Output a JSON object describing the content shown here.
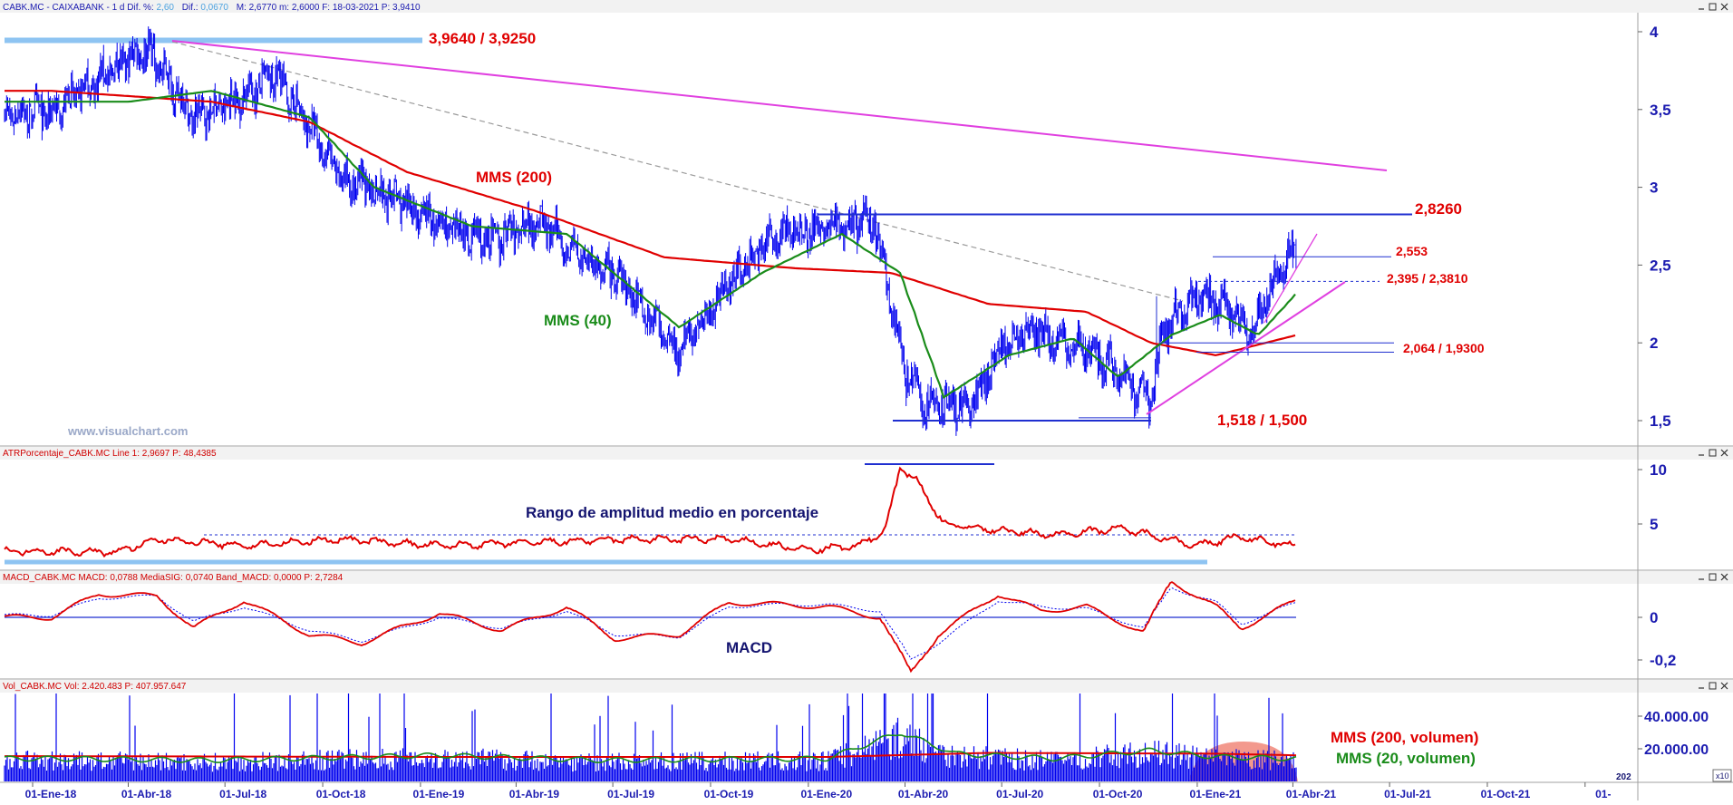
{
  "panels": {
    "price": {
      "header": "CABK.MC - CAIXABANK -  1 d  Dif. %:",
      "header_v1": "2,60",
      "header_l2": "Dif.:",
      "header_v2": "0,0670",
      "header_rest": "M: 2,6770  m: 2,6000  F: 18-03-2021  P: 3,9410",
      "watermark": "www.visualchart.com",
      "label_mms200": "MMS (200)",
      "label_mms40": "MMS (40)",
      "level_top": "3,9640 / 3,9250",
      "level_2826": "2,8260",
      "level_2553": "2,553",
      "level_2395": "2,395 / 2,3810",
      "level_2064": "2,064 / 1,9300",
      "level_1518": "1,518 / 1,500"
    },
    "atr": {
      "header": "ATRPorcentaje_CABK.MC  Line 1: 2,9697  P: 48,4385",
      "title": "Rango de amplitud medio en porcentaje"
    },
    "macd": {
      "header": "MACD_CABK.MC  MACD: 0,0788  MediaSIG: 0,0740  Band_MACD: 0,0000  P: 2,7284",
      "title": "MACD"
    },
    "volume": {
      "header": "Vol_CABK.MC  Vol: 2.420.483  P: 407.957.647",
      "label_mms200": "MMS (200, volumen)",
      "label_mms20": "MMS (20, volumen)",
      "corner_label": "202",
      "corner_box": "x10"
    }
  },
  "colors": {
    "candles": "#0000ee",
    "mms200": "#e00000",
    "mms40": "#1a8c1a",
    "trendline": "#e040e0",
    "level": "#1f2fd0",
    "level_text": "#e00000",
    "axis_text": "#1b1bb0",
    "light_band": "#8ec4f2"
  },
  "chart_data": [
    {
      "type": "line",
      "name": "CABK.MC price (1 d)",
      "x": [
        "2018-01-01",
        "2018-02-15",
        "2018-04-01",
        "2018-05-15",
        "2018-06-20",
        "2018-08-01",
        "2018-10-01",
        "2018-11-15",
        "2019-01-01",
        "2019-02-20",
        "2019-04-01",
        "2019-05-15",
        "2019-06-20",
        "2019-08-15",
        "2019-10-01",
        "2019-11-15",
        "2020-01-01",
        "2020-02-15",
        "2020-03-15",
        "2020-04-01",
        "2020-05-15",
        "2020-06-15",
        "2020-07-15",
        "2020-08-15",
        "2020-09-25",
        "2020-10-30",
        "2020-11-15",
        "2020-12-15",
        "2021-01-10",
        "2021-02-01",
        "2021-02-25",
        "2021-03-18"
      ],
      "y": [
        3.48,
        3.7,
        3.9,
        3.45,
        3.55,
        3.72,
        3.05,
        2.95,
        2.75,
        2.65,
        2.8,
        2.55,
        2.4,
        1.95,
        2.4,
        2.7,
        2.75,
        2.78,
        1.8,
        1.6,
        1.6,
        2.0,
        2.05,
        2.0,
        1.85,
        1.62,
        2.1,
        2.3,
        2.25,
        2.05,
        2.4,
        2.62
      ],
      "xlim": [
        "2017-12-15",
        "2022-01-01"
      ],
      "ylim": [
        1.35,
        4.1
      ],
      "y_ticks": [
        "4",
        "3,5",
        "3",
        "2,5",
        "2",
        "1,5"
      ],
      "x_ticks": [
        "01-Ene-18",
        "01-Abr-18",
        "01-Jul-18",
        "01-Oct-18",
        "01-Ene-19",
        "01-Abr-19",
        "01-Jul-19",
        "01-Oct-19",
        "01-Ene-20",
        "01-Abr-20",
        "01-Jul-20",
        "01-Oct-20",
        "01-Ene-21",
        "01-Abr-21",
        "01-Jul-21",
        "01-Oct-21",
        "01-"
      ],
      "series": [
        {
          "name": "MMS (200)",
          "x": [
            "2018-01-01",
            "2018-06-01",
            "2018-09-01",
            "2018-12-01",
            "2019-04-01",
            "2019-08-01",
            "2019-12-01",
            "2020-03-01",
            "2020-06-01",
            "2020-09-01",
            "2020-11-01",
            "2021-01-01",
            "2021-03-18"
          ],
          "values": [
            3.62,
            3.55,
            3.42,
            3.1,
            2.85,
            2.55,
            2.48,
            2.45,
            2.25,
            2.2,
            2.0,
            1.92,
            2.05
          ]
        },
        {
          "name": "MMS (40)",
          "x": [
            "2018-01-01",
            "2018-03-15",
            "2018-06-01",
            "2018-09-01",
            "2018-11-01",
            "2019-02-01",
            "2019-05-01",
            "2019-08-15",
            "2019-11-01",
            "2020-01-15",
            "2020-03-10",
            "2020-04-20",
            "2020-06-20",
            "2020-08-20",
            "2020-10-01",
            "2020-11-20",
            "2021-01-05",
            "2021-02-10",
            "2021-03-18"
          ],
          "values": [
            3.55,
            3.55,
            3.62,
            3.45,
            3.0,
            2.75,
            2.7,
            2.1,
            2.45,
            2.7,
            2.45,
            1.65,
            1.92,
            2.03,
            1.78,
            2.05,
            2.18,
            2.05,
            2.32
          ]
        }
      ],
      "horizontal_levels": [
        3.964,
        3.925,
        2.826,
        2.553,
        2.395,
        2.381,
        2.064,
        1.93,
        1.518,
        1.5
      ],
      "grid": false
    },
    {
      "type": "line",
      "name": "ATRPorcentaje",
      "x": [
        "2018-01-01",
        "2018-03-01",
        "2018-04-15",
        "2018-07-01",
        "2018-10-01",
        "2019-01-01",
        "2019-04-01",
        "2019-07-01",
        "2019-10-01",
        "2019-12-15",
        "2020-02-01",
        "2020-02-25",
        "2020-03-10",
        "2020-03-25",
        "2020-04-20",
        "2020-06-01",
        "2020-08-01",
        "2020-10-01",
        "2020-11-01",
        "2020-12-15",
        "2021-01-20",
        "2021-03-18"
      ],
      "y": [
        2.5,
        2.4,
        3.6,
        3.0,
        3.6,
        3.0,
        3.3,
        3.6,
        3.6,
        2.6,
        3.0,
        4.5,
        10.3,
        9.0,
        5.0,
        4.5,
        4.0,
        4.6,
        4.0,
        3.0,
        3.8,
        3.0
      ],
      "ylim": [
        0,
        11.5
      ],
      "y_ticks": [
        "10",
        "5"
      ],
      "reference_level": 4.0,
      "grid": false
    },
    {
      "type": "line",
      "name": "MACD",
      "x": [
        "2018-01-01",
        "2018-02-15",
        "2018-04-10",
        "2018-05-15",
        "2018-07-01",
        "2018-09-01",
        "2018-10-20",
        "2019-01-01",
        "2019-03-01",
        "2019-05-01",
        "2019-06-15",
        "2019-08-15",
        "2019-10-01",
        "2019-11-20",
        "2020-01-01",
        "2020-02-20",
        "2020-03-20",
        "2020-04-15",
        "2020-06-10",
        "2020-07-20",
        "2020-09-01",
        "2020-10-25",
        "2020-11-20",
        "2021-01-01",
        "2021-01-25",
        "2021-03-18"
      ],
      "y": [
        0.0,
        0.11,
        0.1,
        -0.05,
        0.08,
        -0.08,
        -0.12,
        0.02,
        -0.06,
        0.05,
        -0.1,
        -0.08,
        0.07,
        0.06,
        0.05,
        0.0,
        -0.26,
        -0.08,
        0.11,
        0.03,
        0.05,
        -0.07,
        0.17,
        0.05,
        -0.05,
        0.08
      ],
      "series": [
        {
          "name": "MACD",
          "values": [
            0.0,
            0.11,
            0.1,
            -0.05,
            0.08,
            -0.08,
            -0.12,
            0.02,
            -0.06,
            0.05,
            -0.1,
            -0.08,
            0.07,
            0.06,
            0.05,
            0.0,
            -0.26,
            -0.08,
            0.11,
            0.03,
            0.05,
            -0.07,
            0.17,
            0.05,
            -0.05,
            0.08
          ]
        },
        {
          "name": "MediaSIG",
          "values": [
            0.01,
            0.09,
            0.1,
            -0.02,
            0.05,
            -0.06,
            -0.11,
            0.0,
            -0.05,
            0.03,
            -0.08,
            -0.09,
            0.05,
            0.06,
            0.06,
            0.03,
            -0.2,
            -0.12,
            0.08,
            0.05,
            0.04,
            -0.05,
            0.14,
            0.07,
            -0.03,
            0.07
          ]
        }
      ],
      "ylim": [
        -0.28,
        0.26
      ],
      "y_ticks": [
        "0",
        "-0,2"
      ],
      "grid": false
    },
    {
      "type": "bar",
      "name": "Vol_CABK.MC",
      "ylim": [
        0,
        55000000
      ],
      "y_ticks": [
        "40.000.00",
        "20.000.00"
      ],
      "series": [
        {
          "name": "MMS (200, volumen)",
          "x": [
            "2018-01-01",
            "2019-01-01",
            "2020-01-01",
            "2020-06-01",
            "2021-01-01",
            "2021-03-18"
          ],
          "values": [
            15500000,
            15000000,
            15000000,
            17500000,
            17000000,
            16000000
          ]
        },
        {
          "name": "MMS (20, volumen)",
          "x": [
            "2018-01-01",
            "2018-06-01",
            "2019-01-01",
            "2019-06-01",
            "2020-01-01",
            "2020-03-10",
            "2020-05-01",
            "2020-08-01",
            "2020-11-01",
            "2021-01-01",
            "2021-03-18"
          ],
          "values": [
            14000000,
            13000000,
            16000000,
            13000000,
            14000000,
            30000000,
            17000000,
            14000000,
            19000000,
            15000000,
            14000000
          ]
        }
      ],
      "grid": false
    }
  ]
}
